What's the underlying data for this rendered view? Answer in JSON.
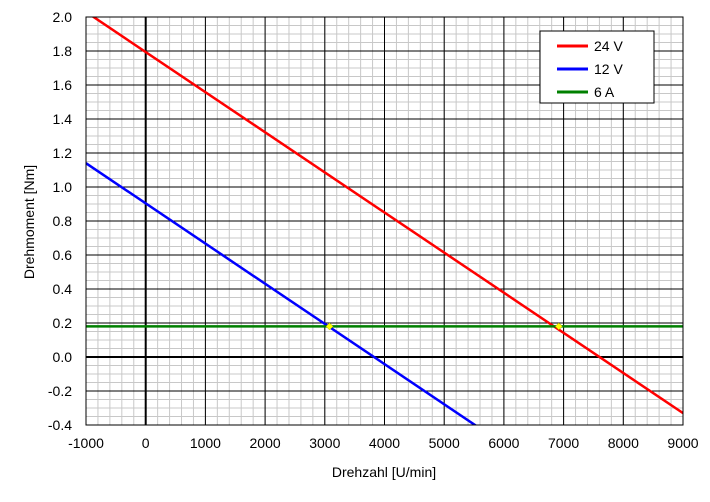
{
  "chart_data": {
    "type": "line",
    "xlabel": "Drehzahl [U/min]",
    "ylabel": "Drehmoment [Nm]",
    "xlim": [
      -1000,
      9000
    ],
    "ylim": [
      -0.4,
      2.0
    ],
    "x_ticks": [
      -1000,
      0,
      1000,
      2000,
      3000,
      4000,
      5000,
      6000,
      7000,
      8000,
      9000
    ],
    "x_tick_labels": [
      "-1000",
      "0",
      "1000",
      "2000",
      "3000",
      "4000",
      "5000",
      "6000",
      "7000",
      "8000",
      "9000"
    ],
    "y_ticks": [
      2.0,
      1.8,
      1.6,
      1.4,
      1.2,
      1.0,
      0.8,
      0.6,
      0.4,
      0.2,
      0.0,
      -0.2,
      -0.4
    ],
    "y_tick_labels": [
      "2.0",
      "1.8",
      "1.6",
      "1.4",
      "1.2",
      "1.0",
      "0.8",
      "0.6",
      "0.4",
      "0.2",
      "0.0",
      "-0.2",
      "-0.4"
    ],
    "grid": true,
    "legend_position": "top-right",
    "series": [
      {
        "name": "24 V",
        "color": "#ff0000",
        "x": [
          -1000,
          9000
        ],
        "y": [
          2.03,
          -0.33
        ]
      },
      {
        "name": "12 V",
        "color": "#0000ff",
        "x": [
          -1000,
          5600
        ],
        "y": [
          1.14,
          -0.42
        ]
      },
      {
        "name": "6 A",
        "color": "#008000",
        "x": [
          -1000,
          9000
        ],
        "y": [
          0.18,
          0.18
        ]
      }
    ],
    "intersections": [
      {
        "x": 3080,
        "y": 0.18,
        "color": "#ffff00"
      },
      {
        "x": 6920,
        "y": 0.18,
        "color": "#ffff00"
      }
    ]
  }
}
